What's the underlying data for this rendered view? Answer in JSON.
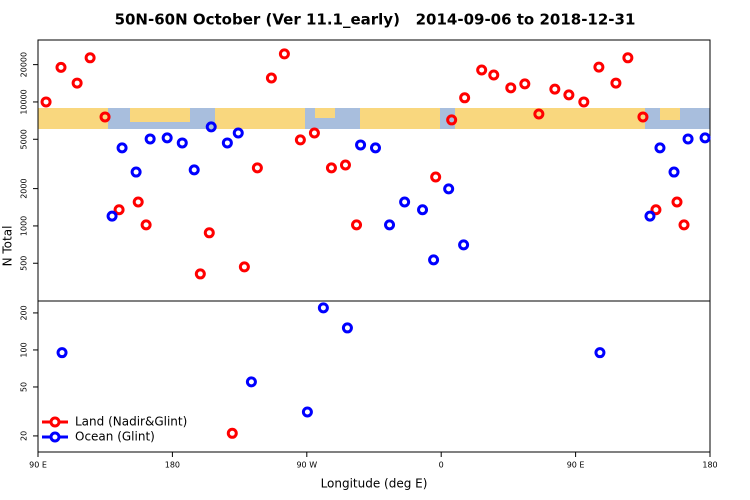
{
  "chart_data": {
    "type": "scatter",
    "title": "50N-60N October (Ver 11.1_early)   2014-09-06 to 2018-12-31",
    "xlabel": "Longitude (deg E)",
    "ylabel": "N Total",
    "ylog": true,
    "xlim": [
      90,
      540
    ],
    "xticks": [
      {
        "value": 90,
        "label": "90 E"
      },
      {
        "value": 180,
        "label": "180"
      },
      {
        "value": 270,
        "label": "90 W"
      },
      {
        "value": 360,
        "label": "0"
      },
      {
        "value": 450,
        "label": "90 E"
      },
      {
        "value": 540,
        "label": "180"
      }
    ],
    "panels": [
      {
        "ylim": [
          248,
          31600
        ],
        "yticks": [
          500,
          1000,
          2000,
          5000,
          10000,
          20000
        ]
      },
      {
        "ylim": [
          14.8,
          250
        ],
        "yticks": [
          20,
          50,
          100,
          200
        ]
      }
    ],
    "legend": "bottom-left",
    "series": [
      {
        "name": "Land (Nadir&Glint)",
        "color": "#ff0000",
        "x": [
          95.4,
          105.4,
          116.2,
          124.9,
          134.9,
          144.3,
          157.1,
          162.4,
          198.7,
          204.7,
          220.1,
          228.2,
          236.9,
          246.3,
          255.0,
          265.7,
          275.1,
          286.5,
          295.9,
          303.3,
          356.3,
          367.0,
          375.7,
          387.1,
          395.2,
          406.6,
          416.0,
          425.4,
          436.1,
          445.5,
          455.5,
          465.6,
          477.0,
          485.0,
          495.1,
          503.8,
          517.9,
          522.6
        ],
        "values": [
          10000,
          19000,
          14200,
          22700,
          7570,
          1350,
          1560,
          1020,
          410,
          880,
          21,
          467,
          2940,
          15600,
          24400,
          4940,
          5620,
          2940,
          3100,
          1020,
          2480,
          7160,
          10800,
          18100,
          16500,
          13000,
          14000,
          8000,
          12700,
          11400,
          10000,
          19100,
          14200,
          22700,
          7570,
          1350,
          1560,
          1020
        ]
      },
      {
        "name": "Ocean (Glint)",
        "color": "#0000ff",
        "x": [
          106.1,
          139.6,
          146.3,
          155.7,
          165.1,
          176.5,
          186.6,
          194.6,
          206.0,
          216.8,
          224.1,
          232.9,
          270.4,
          281.1,
          297.2,
          306.0,
          316.0,
          325.4,
          335.5,
          347.5,
          354.9,
          365.0,
          375.0,
          466.3,
          499.8,
          506.5,
          515.9,
          525.3,
          536.7
        ],
        "values": [
          95,
          1200,
          4260,
          2720,
          5030,
          5130,
          4670,
          2830,
          6290,
          4670,
          5620,
          55,
          31.3,
          220,
          151,
          4500,
          4260,
          1020,
          1560,
          1350,
          532,
          1990,
          703,
          95,
          1200,
          4260,
          2720,
          5030,
          5130
        ]
      }
    ]
  }
}
